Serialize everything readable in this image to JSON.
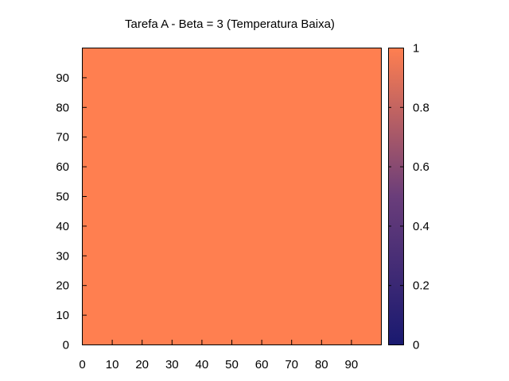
{
  "chart_data": {
    "type": "heatmap",
    "title": "Tarefa A - Beta = 3 (Temperatura Baixa)",
    "xlabel": "",
    "ylabel": "",
    "xlim": [
      0,
      99
    ],
    "ylim": [
      0,
      99
    ],
    "x_ticks": [
      "0",
      "10",
      "20",
      "30",
      "40",
      "50",
      "60",
      "70",
      "80",
      "90"
    ],
    "y_ticks": [
      "0",
      "10",
      "20",
      "30",
      "40",
      "50",
      "60",
      "70",
      "80",
      "90"
    ],
    "grid_size": [
      100,
      100
    ],
    "uniform_value": 1,
    "colorbar": {
      "range": [
        0,
        1
      ],
      "ticks": [
        "0",
        "0.2",
        "0.4",
        "0.6",
        "0.8",
        "1"
      ],
      "color_min": "#191970",
      "color_mid": "#6a3d7a",
      "color_max": "#ff7f50"
    },
    "cell_color": "#ff7f50",
    "grid": false
  }
}
